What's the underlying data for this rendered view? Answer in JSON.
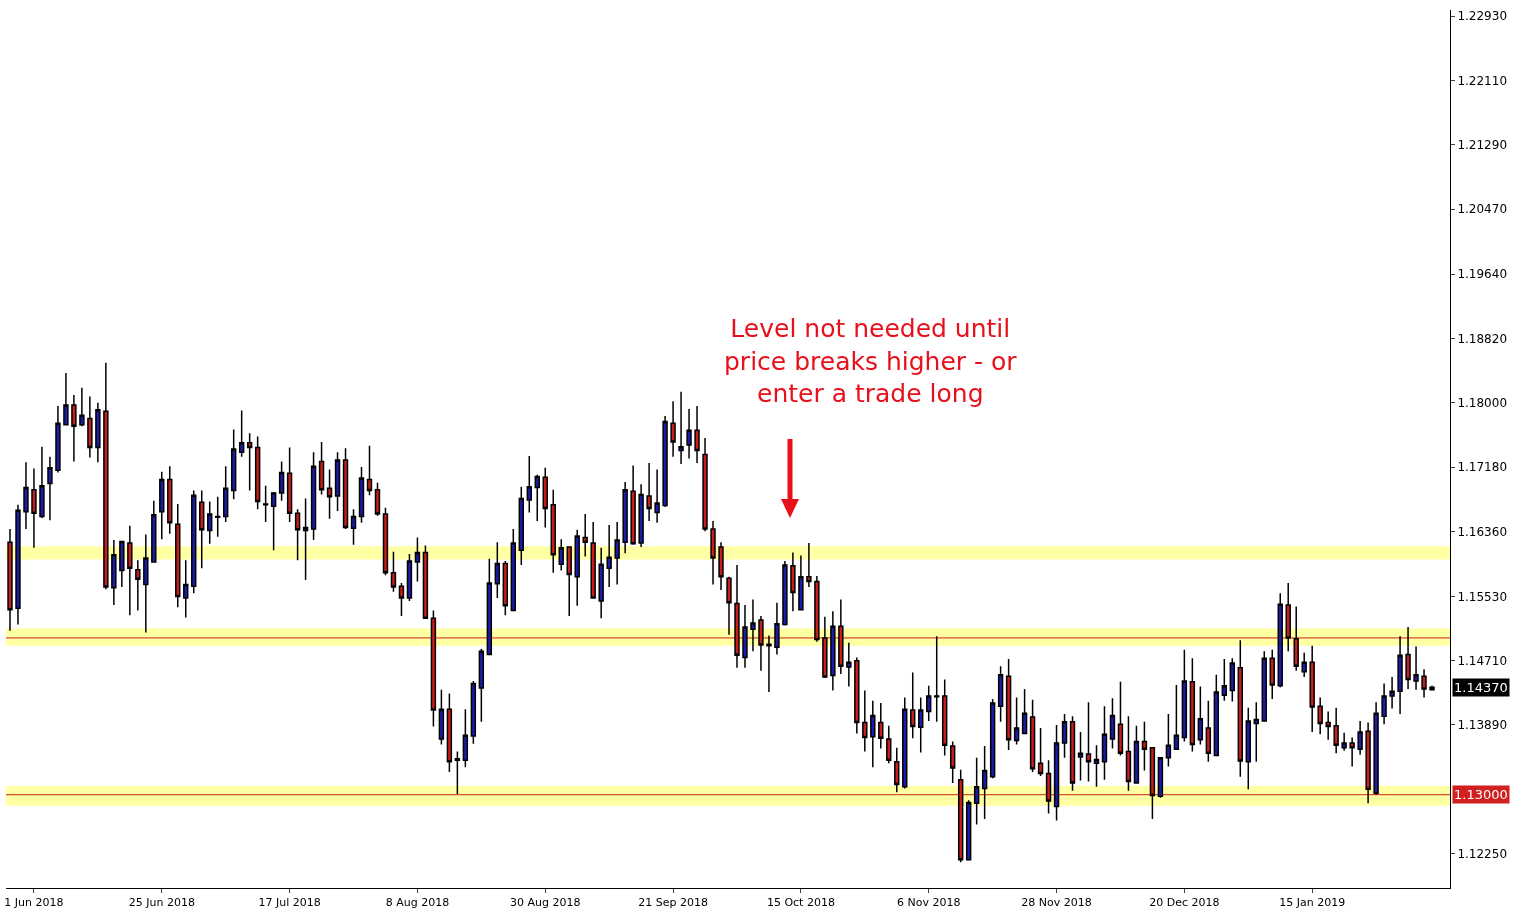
{
  "chart_data": {
    "type": "candlestick",
    "categories": [
      null,
      null,
      null,
      "1 Jun 2018",
      null,
      null,
      null,
      null,
      null,
      null,
      null,
      null,
      null,
      null,
      null,
      null,
      null,
      null,
      null,
      "25 Jun 2018",
      null,
      null,
      null,
      null,
      null,
      null,
      null,
      null,
      null,
      null,
      null,
      null,
      null,
      null,
      null,
      "17 Jul 2018",
      null,
      null,
      null,
      null,
      null,
      null,
      null,
      null,
      null,
      null,
      null,
      null,
      null,
      null,
      null,
      "8 Aug 2018",
      null,
      null,
      null,
      null,
      null,
      null,
      null,
      null,
      null,
      null,
      null,
      null,
      null,
      null,
      null,
      "30 Aug 2018",
      null,
      null,
      null,
      null,
      null,
      null,
      null,
      null,
      null,
      null,
      null,
      null,
      null,
      null,
      null,
      "21 Sep 2018",
      null,
      null,
      null,
      null,
      null,
      null,
      null,
      null,
      null,
      null,
      null,
      null,
      null,
      null,
      null,
      "15 Oct 2018",
      null,
      null,
      null,
      null,
      null,
      null,
      null,
      null,
      null,
      null,
      null,
      null,
      null,
      null,
      null,
      "6 Nov 2018",
      null,
      null,
      null,
      null,
      null,
      null,
      null,
      null,
      null,
      null,
      null,
      null,
      null,
      null,
      null,
      "28 Nov 2018",
      null,
      null,
      null,
      null,
      null,
      null,
      null,
      null,
      null,
      null,
      null,
      null,
      null,
      null,
      null,
      "20 Dec 2018",
      null,
      null,
      null,
      null,
      null,
      null,
      null,
      null,
      null,
      null,
      null,
      null,
      null,
      null,
      null,
      "15 Jan 2019",
      null,
      null,
      null,
      null,
      null,
      null,
      null,
      null,
      null,
      null,
      null,
      null,
      null,
      null,
      null
    ],
    "ohlc": [
      [
        1.1622,
        1.1639,
        1.1509,
        1.1536
      ],
      [
        1.1538,
        1.167,
        1.1517,
        1.1663
      ],
      [
        1.1661,
        1.1724,
        1.1639,
        1.1692
      ],
      [
        1.1689,
        1.1716,
        1.1615,
        1.1659
      ],
      [
        1.1655,
        1.1744,
        1.1653,
        1.1694
      ],
      [
        1.1697,
        1.1731,
        1.165,
        1.1717
      ],
      [
        1.1714,
        1.1796,
        1.1711,
        1.1774
      ],
      [
        1.1772,
        1.1838,
        1.1771,
        1.1797
      ],
      [
        1.1797,
        1.181,
        1.1725,
        1.177
      ],
      [
        1.1772,
        1.1819,
        1.177,
        1.1784
      ],
      [
        1.178,
        1.1808,
        1.173,
        1.1743
      ],
      [
        1.1743,
        1.18,
        1.1724,
        1.1791
      ],
      [
        1.1789,
        1.1851,
        1.1562,
        1.1565
      ],
      [
        1.1564,
        1.1625,
        1.1542,
        1.1606
      ],
      [
        1.1586,
        1.1624,
        1.1565,
        1.1623
      ],
      [
        1.1621,
        1.1643,
        1.1529,
        1.1589
      ],
      [
        1.1587,
        1.1599,
        1.1535,
        1.1575
      ],
      [
        1.1568,
        1.1632,
        1.1507,
        1.1602
      ],
      [
        1.1597,
        1.1675,
        1.1596,
        1.1657
      ],
      [
        1.1661,
        1.1712,
        1.1626,
        1.1702
      ],
      [
        1.1702,
        1.1719,
        1.1633,
        1.1647
      ],
      [
        1.1645,
        1.1671,
        1.1539,
        1.1553
      ],
      [
        1.1551,
        1.1599,
        1.1526,
        1.1568
      ],
      [
        1.1566,
        1.1688,
        1.1557,
        1.1682
      ],
      [
        1.1673,
        1.1688,
        1.1589,
        1.1638
      ],
      [
        1.1637,
        1.1674,
        1.162,
        1.1658
      ],
      [
        1.1654,
        1.168,
        1.1629,
        1.1655
      ],
      [
        1.1655,
        1.1719,
        1.1648,
        1.1691
      ],
      [
        1.1688,
        1.1766,
        1.1677,
        1.1741
      ],
      [
        1.1737,
        1.179,
        1.1731,
        1.1749
      ],
      [
        1.1749,
        1.1761,
        1.1688,
        1.1743
      ],
      [
        1.1743,
        1.1757,
        1.1664,
        1.1674
      ],
      [
        1.167,
        1.1694,
        1.1648,
        1.1671
      ],
      [
        1.1668,
        1.1686,
        1.1612,
        1.1685
      ],
      [
        1.1685,
        1.1725,
        1.1675,
        1.1711
      ],
      [
        1.171,
        1.1743,
        1.1648,
        1.1659
      ],
      [
        1.1659,
        1.1664,
        1.1599,
        1.1638
      ],
      [
        1.1637,
        1.1678,
        1.1574,
        1.1641
      ],
      [
        1.1639,
        1.1737,
        1.1625,
        1.1719
      ],
      [
        1.1725,
        1.175,
        1.1683,
        1.1689
      ],
      [
        1.1691,
        1.1715,
        1.1652,
        1.168
      ],
      [
        1.1681,
        1.1737,
        1.1662,
        1.1727
      ],
      [
        1.1727,
        1.1742,
        1.1639,
        1.1641
      ],
      [
        1.164,
        1.1664,
        1.1619,
        1.1655
      ],
      [
        1.1655,
        1.1718,
        1.1647,
        1.1704
      ],
      [
        1.1702,
        1.1745,
        1.1682,
        1.1688
      ],
      [
        1.1689,
        1.1698,
        1.1656,
        1.1658
      ],
      [
        1.1658,
        1.1666,
        1.158,
        1.1583
      ],
      [
        1.1583,
        1.161,
        1.1559,
        1.1565
      ],
      [
        1.1566,
        1.157,
        1.1528,
        1.1551
      ],
      [
        1.1551,
        1.1607,
        1.1547,
        1.1598
      ],
      [
        1.1597,
        1.1628,
        1.1572,
        1.1609
      ],
      [
        1.1609,
        1.1618,
        1.1524,
        1.1525
      ],
      [
        1.1525,
        1.1535,
        1.1387,
        1.1408
      ],
      [
        1.1371,
        1.1434,
        1.1364,
        1.1409
      ],
      [
        1.1409,
        1.1429,
        1.1329,
        1.1342
      ],
      [
        1.1344,
        1.1355,
        1.1301,
        1.1346
      ],
      [
        1.1344,
        1.1409,
        1.1335,
        1.1376
      ],
      [
        1.1375,
        1.1445,
        1.1365,
        1.1442
      ],
      [
        1.1436,
        1.1486,
        1.1393,
        1.1483
      ],
      [
        1.1479,
        1.1601,
        1.1478,
        1.157
      ],
      [
        1.1569,
        1.1622,
        1.1551,
        1.1595
      ],
      [
        1.1595,
        1.1598,
        1.1529,
        1.1541
      ],
      [
        1.1535,
        1.1639,
        1.1534,
        1.1621
      ],
      [
        1.1612,
        1.1693,
        1.1593,
        1.1678
      ],
      [
        1.1676,
        1.1732,
        1.166,
        1.1693
      ],
      [
        1.1692,
        1.1708,
        1.1649,
        1.1706
      ],
      [
        1.1705,
        1.1717,
        1.1641,
        1.1665
      ],
      [
        1.167,
        1.1689,
        1.1583,
        1.1606
      ],
      [
        1.1594,
        1.1626,
        1.1586,
        1.1615
      ],
      [
        1.1616,
        1.1617,
        1.1528,
        1.1581
      ],
      [
        1.1578,
        1.1638,
        1.1541,
        1.163
      ],
      [
        1.1628,
        1.1658,
        1.1604,
        1.1622
      ],
      [
        1.1621,
        1.1648,
        1.155,
        1.1551
      ],
      [
        1.1547,
        1.1615,
        1.1525,
        1.1594
      ],
      [
        1.1589,
        1.1644,
        1.1565,
        1.1603
      ],
      [
        1.1602,
        1.1648,
        1.1568,
        1.1625
      ],
      [
        1.1622,
        1.1699,
        1.1608,
        1.1689
      ],
      [
        1.1687,
        1.172,
        1.1619,
        1.162
      ],
      [
        1.1621,
        1.1696,
        1.1616,
        1.1683
      ],
      [
        1.1681,
        1.1723,
        1.1649,
        1.1665
      ],
      [
        1.166,
        1.1715,
        1.1647,
        1.1672
      ],
      [
        1.1669,
        1.1783,
        1.1667,
        1.1776
      ],
      [
        1.1774,
        1.1802,
        1.1731,
        1.175
      ],
      [
        1.1739,
        1.1814,
        1.1722,
        1.1744
      ],
      [
        1.1746,
        1.1792,
        1.1729,
        1.1765
      ],
      [
        1.1765,
        1.1796,
        1.1723,
        1.1739
      ],
      [
        1.1734,
        1.1755,
        1.1636,
        1.1639
      ],
      [
        1.1639,
        1.1649,
        1.1568,
        1.1602
      ],
      [
        1.1616,
        1.1622,
        1.1561,
        1.1578
      ],
      [
        1.1576,
        1.1578,
        1.1504,
        1.1545
      ],
      [
        1.1544,
        1.1593,
        1.1462,
        1.1478
      ],
      [
        1.1475,
        1.1542,
        1.1462,
        1.1514
      ],
      [
        1.1511,
        1.1549,
        1.1483,
        1.1519
      ],
      [
        1.1523,
        1.1528,
        1.1458,
        1.1491
      ],
      [
        1.1492,
        1.1503,
        1.1431,
        1.149
      ],
      [
        1.1488,
        1.1545,
        1.1479,
        1.1518
      ],
      [
        1.1517,
        1.1598,
        1.1516,
        1.1593
      ],
      [
        1.1592,
        1.1609,
        1.1534,
        1.1558
      ],
      [
        1.1536,
        1.1605,
        1.1535,
        1.1578
      ],
      [
        1.1578,
        1.1621,
        1.1565,
        1.1572
      ],
      [
        1.1572,
        1.1579,
        1.1495,
        1.1498
      ],
      [
        1.15,
        1.1527,
        1.1449,
        1.145
      ],
      [
        1.1452,
        1.1534,
        1.1433,
        1.1515
      ],
      [
        1.1515,
        1.1549,
        1.1454,
        1.1464
      ],
      [
        1.1463,
        1.1494,
        1.1438,
        1.1469
      ],
      [
        1.1471,
        1.1475,
        1.1378,
        1.1392
      ],
      [
        1.1392,
        1.1433,
        1.1355,
        1.1373
      ],
      [
        1.1374,
        1.142,
        1.1335,
        1.1401
      ],
      [
        1.1392,
        1.1417,
        1.1359,
        1.1372
      ],
      [
        1.1371,
        1.1388,
        1.134,
        1.1344
      ],
      [
        1.1342,
        1.136,
        1.1303,
        1.1313
      ],
      [
        1.131,
        1.1424,
        1.1308,
        1.1409
      ],
      [
        1.1408,
        1.1456,
        1.1372,
        1.1387
      ],
      [
        1.1386,
        1.1424,
        1.1354,
        1.1408
      ],
      [
        1.1406,
        1.1439,
        1.1394,
        1.1426
      ],
      [
        1.1426,
        1.1502,
        1.1393,
        1.1425
      ],
      [
        1.1426,
        1.1447,
        1.135,
        1.1363
      ],
      [
        1.1362,
        1.1368,
        1.1315,
        1.1334
      ],
      [
        1.1319,
        1.1332,
        1.1214,
        1.1217
      ],
      [
        1.1217,
        1.1293,
        1.1216,
        1.129
      ],
      [
        1.1289,
        1.1347,
        1.1262,
        1.131
      ],
      [
        1.1308,
        1.1362,
        1.1269,
        1.1331
      ],
      [
        1.1323,
        1.1422,
        1.1321,
        1.1417
      ],
      [
        1.1413,
        1.1464,
        1.1393,
        1.1453
      ],
      [
        1.1451,
        1.1473,
        1.1357,
        1.137
      ],
      [
        1.1369,
        1.1424,
        1.1364,
        1.1385
      ],
      [
        1.1378,
        1.1435,
        1.1377,
        1.1404
      ],
      [
        1.1399,
        1.1421,
        1.1329,
        1.1333
      ],
      [
        1.134,
        1.1385,
        1.1324,
        1.1327
      ],
      [
        1.1327,
        1.1344,
        1.1276,
        1.1292
      ],
      [
        1.1285,
        1.1389,
        1.1267,
        1.1366
      ],
      [
        1.1366,
        1.1403,
        1.1347,
        1.1393
      ],
      [
        1.1393,
        1.14,
        1.1305,
        1.1315
      ],
      [
        1.1348,
        1.138,
        1.1318,
        1.1353
      ],
      [
        1.1352,
        1.1418,
        1.1317,
        1.1342
      ],
      [
        1.134,
        1.1363,
        1.131,
        1.1345
      ],
      [
        1.1342,
        1.1413,
        1.1319,
        1.1377
      ],
      [
        1.1371,
        1.1423,
        1.1359,
        1.1401
      ],
      [
        1.139,
        1.1444,
        1.135,
        1.1353
      ],
      [
        1.1355,
        1.14,
        1.1305,
        1.1317
      ],
      [
        1.1315,
        1.1388,
        1.1314,
        1.1368
      ],
      [
        1.1368,
        1.1393,
        1.1331,
        1.1358
      ],
      [
        1.136,
        1.1361,
        1.1269,
        1.1299
      ],
      [
        1.1298,
        1.1348,
        1.1296,
        1.1347
      ],
      [
        1.1347,
        1.1403,
        1.1336,
        1.1363
      ],
      [
        1.1358,
        1.144,
        1.1357,
        1.1376
      ],
      [
        1.1373,
        1.1485,
        1.1368,
        1.1445
      ],
      [
        1.1444,
        1.1474,
        1.1355,
        1.1364
      ],
      [
        1.137,
        1.1438,
        1.1364,
        1.1397
      ],
      [
        1.1385,
        1.142,
        1.1342,
        1.1353
      ],
      [
        1.135,
        1.1453,
        1.1349,
        1.1431
      ],
      [
        1.1427,
        1.1473,
        1.142,
        1.1439
      ],
      [
        1.1433,
        1.1474,
        1.1419,
        1.1468
      ],
      [
        1.1462,
        1.1497,
        1.1323,
        1.1343
      ],
      [
        1.1342,
        1.1411,
        1.1307,
        1.1394
      ],
      [
        1.1391,
        1.1418,
        1.1342,
        1.1396
      ],
      [
        1.1394,
        1.1483,
        1.1393,
        1.1474
      ],
      [
        1.1474,
        1.1485,
        1.1422,
        1.144
      ],
      [
        1.1439,
        1.1557,
        1.1437,
        1.1543
      ],
      [
        1.1542,
        1.157,
        1.1483,
        1.15
      ],
      [
        1.1499,
        1.154,
        1.1458,
        1.1464
      ],
      [
        1.1457,
        1.1481,
        1.145,
        1.1469
      ],
      [
        1.1469,
        1.149,
        1.138,
        1.1412
      ],
      [
        1.1413,
        1.1424,
        1.1377,
        1.1391
      ],
      [
        1.1392,
        1.1406,
        1.137,
        1.1387
      ],
      [
        1.1388,
        1.1411,
        1.1353,
        1.1363
      ],
      [
        1.136,
        1.1379,
        1.1356,
        1.1366
      ],
      [
        1.1366,
        1.1373,
        1.1336,
        1.136
      ],
      [
        1.1358,
        1.1394,
        1.1351,
        1.138
      ],
      [
        1.1381,
        1.1392,
        1.1289,
        1.1307
      ],
      [
        1.1302,
        1.1418,
        1.13,
        1.1404
      ],
      [
        1.14,
        1.1442,
        1.139,
        1.1426
      ],
      [
        1.1426,
        1.145,
        1.141,
        1.1432
      ],
      [
        1.1432,
        1.1502,
        1.1403,
        1.1478
      ],
      [
        1.1479,
        1.1514,
        1.1435,
        1.1447
      ],
      [
        1.1445,
        1.1489,
        1.1434,
        1.1453
      ],
      [
        1.1451,
        1.146,
        1.1424,
        1.1435
      ],
      [
        1.1434,
        1.1439,
        1.1433,
        1.1437
      ]
    ],
    "ylim": [
      1.1181,
      1.2301
    ],
    "yticks": [
      {
        "value": 1.1225,
        "label": "1.12250"
      },
      {
        "value": 1.1389,
        "label": "1.13890"
      },
      {
        "value": 1.1471,
        "label": "1.14710"
      },
      {
        "value": 1.1553,
        "label": "1.15530"
      },
      {
        "value": 1.1636,
        "label": "1.16360"
      },
      {
        "value": 1.1718,
        "label": "1.17180"
      },
      {
        "value": 1.18,
        "label": "1.18000"
      },
      {
        "value": 1.1882,
        "label": "1.18820"
      },
      {
        "value": 1.1964,
        "label": "1.19640"
      },
      {
        "value": 1.2047,
        "label": "1.20470"
      },
      {
        "value": 1.2129,
        "label": "1.21290"
      },
      {
        "value": 1.2211,
        "label": "1.22110"
      },
      {
        "value": 1.2293,
        "label": "1.22930"
      }
    ],
    "grid": false,
    "legend": false,
    "bands": [
      {
        "axis": "y",
        "from": 1.1286,
        "to": 1.1311,
        "color": "#ffff66"
      },
      {
        "axis": "y",
        "from": 1.149,
        "to": 1.1512,
        "color": "#ffff66"
      },
      {
        "axis": "y",
        "from": 1.16,
        "to": 1.1617,
        "color": "#ffff66"
      }
    ],
    "ref_lines": [
      {
        "axis": "y",
        "value": 1.15,
        "color": "#d02020"
      },
      {
        "axis": "y",
        "value": 1.13,
        "label": "1.13000",
        "color": "#d02020"
      }
    ],
    "annotations": [
      "Level not needed until\nprice breaks higher - or\nenter a trade long",
      "1.14370"
    ]
  }
}
